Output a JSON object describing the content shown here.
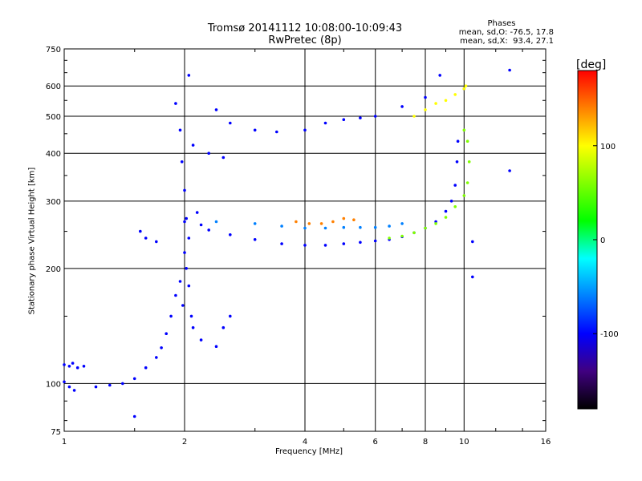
{
  "chart_data": {
    "type": "scatter",
    "title": "Tromsø 20141112 10:08:00-10:09:43",
    "subtitle": "RwPretec (8p)",
    "xlabel": "Frequency [MHz]",
    "ylabel": "Stationary phase Virtual Height [km]",
    "xscale": "log",
    "yscale": "log",
    "xlim": [
      1,
      16
    ],
    "ylim": [
      75,
      750
    ],
    "x_ticks": [
      1,
      2,
      4,
      6,
      8,
      10,
      16
    ],
    "x_tick_labels": [
      "1",
      "2",
      "4",
      "6",
      "8",
      "10",
      "16"
    ],
    "y_ticks": [
      75,
      100,
      200,
      300,
      400,
      500,
      600,
      750
    ],
    "y_tick_labels": [
      "75",
      "100",
      "200",
      "300",
      "400",
      "500",
      "600",
      "750"
    ],
    "grid": true,
    "phase_stats": {
      "heading": "Phases",
      "o_line": "mean, sd,O: -76.5, 17.8",
      "x_line": "mean, sd,X:  93.4, 27.1"
    },
    "colorbar": {
      "label": "[deg]",
      "range": [
        -180,
        180
      ],
      "ticks": [
        100,
        0,
        -100
      ],
      "tick_labels": [
        "100",
        "0",
        "-100"
      ],
      "colors": [
        "#ff0000",
        "#ff8000",
        "#ffff00",
        "#80ff00",
        "#00ff00",
        "#00ffff",
        "#0080ff",
        "#0000ff",
        "#400080",
        "#000000"
      ]
    },
    "series": [
      {
        "trace": "low",
        "phase": -110,
        "points": [
          [
            1.0,
            112
          ],
          [
            1.03,
            111
          ],
          [
            1.05,
            113
          ],
          [
            1.08,
            110
          ],
          [
            1.12,
            111
          ],
          [
            1.0,
            101
          ],
          [
            1.03,
            98
          ],
          [
            1.06,
            96
          ],
          [
            1.2,
            98
          ],
          [
            1.3,
            99
          ],
          [
            1.4,
            100
          ],
          [
            1.5,
            103
          ],
          [
            1.6,
            110
          ],
          [
            1.7,
            117
          ],
          [
            1.75,
            124
          ],
          [
            1.8,
            135
          ],
          [
            1.85,
            150
          ],
          [
            1.9,
            170
          ],
          [
            1.95,
            185
          ],
          [
            1.5,
            82
          ]
        ]
      },
      {
        "trace": "spread-2MHz",
        "phase": -95,
        "points": [
          [
            1.9,
            540
          ],
          [
            1.95,
            460
          ],
          [
            1.97,
            380
          ],
          [
            2.0,
            320
          ],
          [
            2.02,
            270
          ],
          [
            2.05,
            240
          ],
          [
            2.0,
            220
          ],
          [
            2.02,
            200
          ],
          [
            2.05,
            180
          ],
          [
            1.98,
            160
          ],
          [
            2.08,
            150
          ],
          [
            2.1,
            140
          ],
          [
            2.2,
            130
          ],
          [
            2.4,
            125
          ],
          [
            2.6,
            150
          ],
          [
            2.5,
            140
          ],
          [
            2.1,
            420
          ],
          [
            2.3,
            400
          ],
          [
            2.5,
            390
          ],
          [
            2.15,
            280
          ],
          [
            2.2,
            260
          ]
        ]
      },
      {
        "trace": "F2-low-O",
        "phase": -90,
        "points": [
          [
            2.0,
            265
          ],
          [
            2.3,
            252
          ],
          [
            2.6,
            245
          ],
          [
            3.0,
            238
          ],
          [
            3.5,
            232
          ],
          [
            4.0,
            230
          ],
          [
            4.5,
            230
          ],
          [
            5.0,
            232
          ],
          [
            5.5,
            234
          ],
          [
            6.0,
            236
          ],
          [
            6.5,
            238
          ],
          [
            7.0,
            242
          ],
          [
            7.5,
            248
          ],
          [
            8.0,
            255
          ],
          [
            8.5,
            265
          ],
          [
            9.0,
            282
          ],
          [
            9.3,
            300
          ],
          [
            9.5,
            330
          ],
          [
            9.6,
            380
          ],
          [
            9.65,
            430
          ]
        ]
      },
      {
        "trace": "F2-mid",
        "phase": -75,
        "points": [
          [
            2.4,
            265
          ],
          [
            3.0,
            262
          ],
          [
            3.5,
            258
          ],
          [
            4.0,
            255
          ],
          [
            4.5,
            255
          ],
          [
            5.0,
            256
          ],
          [
            5.5,
            256
          ],
          [
            6.0,
            256
          ],
          [
            6.5,
            258
          ],
          [
            7.0,
            262
          ]
        ]
      },
      {
        "trace": "F2-X",
        "phase": 70,
        "points": [
          [
            6.5,
            240
          ],
          [
            7.0,
            243
          ],
          [
            7.5,
            248
          ],
          [
            8.0,
            255
          ],
          [
            8.5,
            262
          ],
          [
            9.0,
            272
          ],
          [
            9.5,
            290
          ],
          [
            10.0,
            310
          ],
          [
            10.2,
            335
          ],
          [
            10.3,
            380
          ],
          [
            10.2,
            430
          ],
          [
            10.0,
            460
          ]
        ]
      },
      {
        "trace": "red-band",
        "phase": 150,
        "points": [
          [
            3.8,
            265
          ],
          [
            4.1,
            262
          ],
          [
            4.4,
            262
          ],
          [
            4.7,
            265
          ],
          [
            5.0,
            270
          ],
          [
            5.3,
            268
          ]
        ]
      },
      {
        "trace": "upper",
        "phase": -90,
        "points": [
          [
            2.4,
            520
          ],
          [
            2.6,
            480
          ],
          [
            3.0,
            460
          ],
          [
            3.4,
            455
          ],
          [
            4.0,
            460
          ],
          [
            4.5,
            480
          ],
          [
            5.0,
            490
          ],
          [
            5.5,
            495
          ],
          [
            6.0,
            500
          ],
          [
            7.0,
            530
          ],
          [
            8.0,
            560
          ],
          [
            8.7,
            640
          ],
          [
            10.0,
            590
          ]
        ]
      },
      {
        "trace": "upper-X",
        "phase": 95,
        "points": [
          [
            7.5,
            500
          ],
          [
            8.0,
            520
          ],
          [
            8.5,
            540
          ],
          [
            9.0,
            550
          ],
          [
            9.5,
            570
          ],
          [
            10.0,
            590
          ],
          [
            10.1,
            600
          ]
        ]
      },
      {
        "trace": "isolated",
        "phase": -90,
        "points": [
          [
            1.55,
            250
          ],
          [
            1.6,
            240
          ],
          [
            1.7,
            235
          ],
          [
            10.5,
            235
          ],
          [
            13.0,
            360
          ],
          [
            13.0,
            660
          ],
          [
            10.5,
            190
          ],
          [
            2.05,
            640
          ]
        ]
      }
    ]
  }
}
